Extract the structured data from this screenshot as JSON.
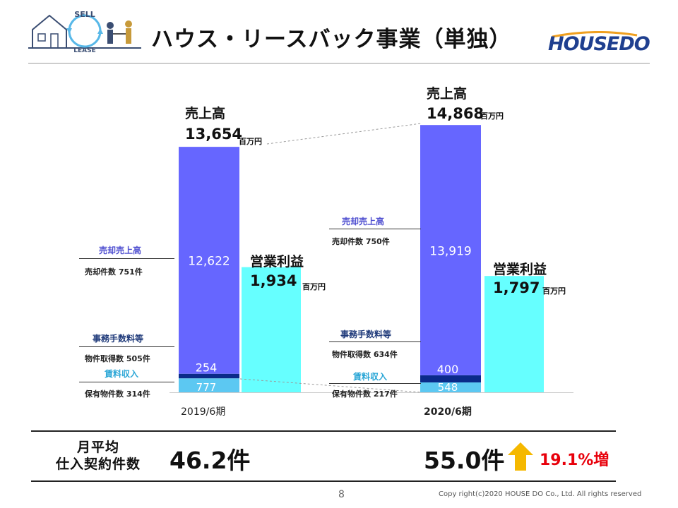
{
  "header": {
    "title": "ハウス・リースバック事業（単独）",
    "icon_text_top": "SELL",
    "icon_text_bottom": "LEASE",
    "brand": "HOUSEDO"
  },
  "chart_data": {
    "type": "bar",
    "unit": "百万円",
    "categories": [
      "2019/6期",
      "2020/6期"
    ],
    "revenue_label": "売上高",
    "profit_label": "営業利益",
    "revenue_total": [
      "13,654",
      "14,868"
    ],
    "profit_total": [
      "1,934",
      "1,797"
    ],
    "series": [
      {
        "name": "売却売上高",
        "values": [
          12622,
          13919
        ],
        "labels": [
          "12,622",
          "13,919"
        ],
        "detail": [
          "売却件数 751件",
          "売却件数 750件"
        ],
        "color": "#6666ff",
        "label_color": "#4f4fd0"
      },
      {
        "name": "事務手数料等",
        "values": [
          254,
          400
        ],
        "labels": [
          "254",
          "400"
        ],
        "detail": [
          "物件取得数 505件",
          "物件取得数 634件"
        ],
        "color": "#0a2a8a",
        "label_color": "#1f3a7a"
      },
      {
        "name": "賃料収入",
        "values": [
          777,
          548
        ],
        "labels": [
          "777",
          "548"
        ],
        "detail": [
          "保有物件数 314件",
          "保有物件数 217件"
        ],
        "color": "#5cc8f2",
        "label_color": "#2aa6d6"
      }
    ],
    "profit": [
      1934,
      1797
    ],
    "profit_color": "#66ffff",
    "ylim": [
      0,
      16000
    ]
  },
  "monthly": {
    "label_line1": "月平均",
    "label_line2": "仕入契約件数",
    "value_2019": "46.2件",
    "value_2020": "55.0件",
    "growth": "19.1%増",
    "arrow_color": "#f5b800"
  },
  "footer": {
    "page": "8",
    "copyright": "Copy right(c)2020  HOUSE DO Co., Ltd. All rights reserved"
  }
}
